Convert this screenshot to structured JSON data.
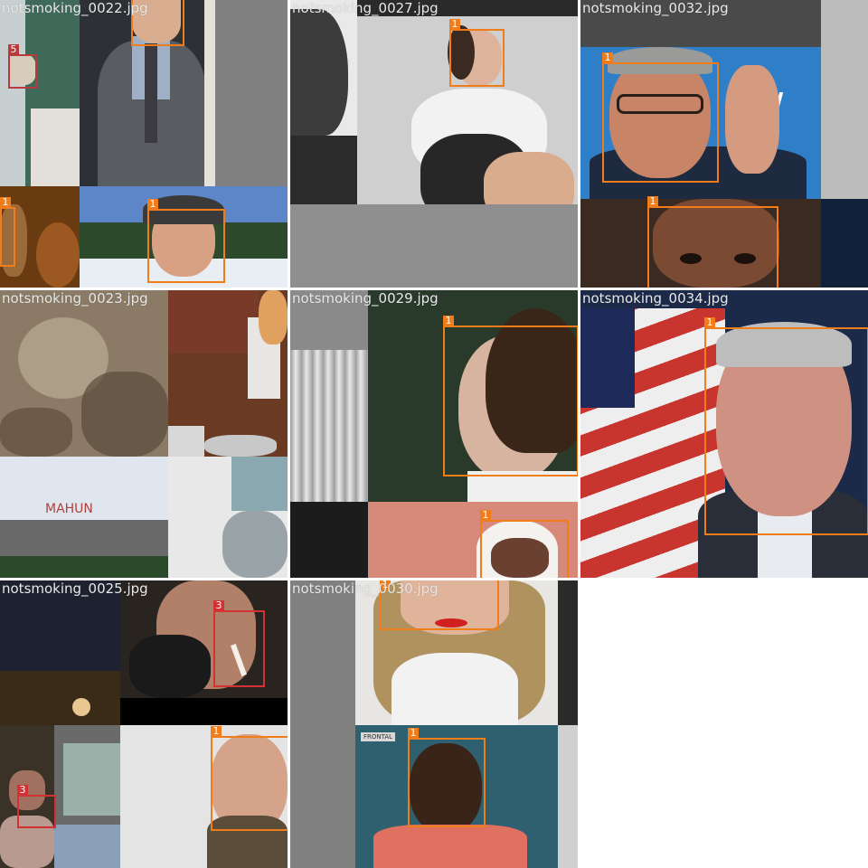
{
  "mosaic": {
    "tiles": [
      {
        "filename": "notsmoking_0022.jpg",
        "boxes": [
          {
            "label": "5",
            "color": "#b83a3a"
          },
          {
            "label": "",
            "color": "#f07d1a"
          },
          {
            "label": "1",
            "color": "#f07d1a"
          },
          {
            "label": "1",
            "color": "#f07d1a"
          }
        ]
      },
      {
        "filename": "notsmoking_0027.jpg",
        "boxes": [
          {
            "label": "1",
            "color": "#f07d1a"
          }
        ]
      },
      {
        "filename": "notsmoking_0032.jpg",
        "boxes": [
          {
            "label": "1",
            "color": "#f07d1a"
          },
          {
            "label": "1",
            "color": "#f07d1a"
          }
        ]
      },
      {
        "filename": "notsmoking_0023.jpg",
        "boxes": []
      },
      {
        "filename": "notsmoking_0029.jpg",
        "boxes": [
          {
            "label": "1",
            "color": "#f07d1a"
          },
          {
            "label": "1",
            "color": "#f07d1a"
          }
        ]
      },
      {
        "filename": "notsmoking_0034.jpg",
        "boxes": [
          {
            "label": "1",
            "color": "#f07d1a"
          }
        ]
      },
      {
        "filename": "notsmoking_0025.jpg",
        "boxes": [
          {
            "label": "3",
            "color": "#d23232"
          },
          {
            "label": "3",
            "color": "#d23232"
          },
          {
            "label": "1",
            "color": "#f07d1a"
          }
        ]
      },
      {
        "filename": "notsmoking_0030.jpg",
        "boxes": [
          {
            "label": "1",
            "color": "#f07d1a"
          },
          {
            "label": "1",
            "color": "#f07d1a"
          }
        ]
      }
    ],
    "photo_texts": {
      "frontal_badge": "FRONTAL",
      "sign_text": "MAHUN"
    }
  }
}
